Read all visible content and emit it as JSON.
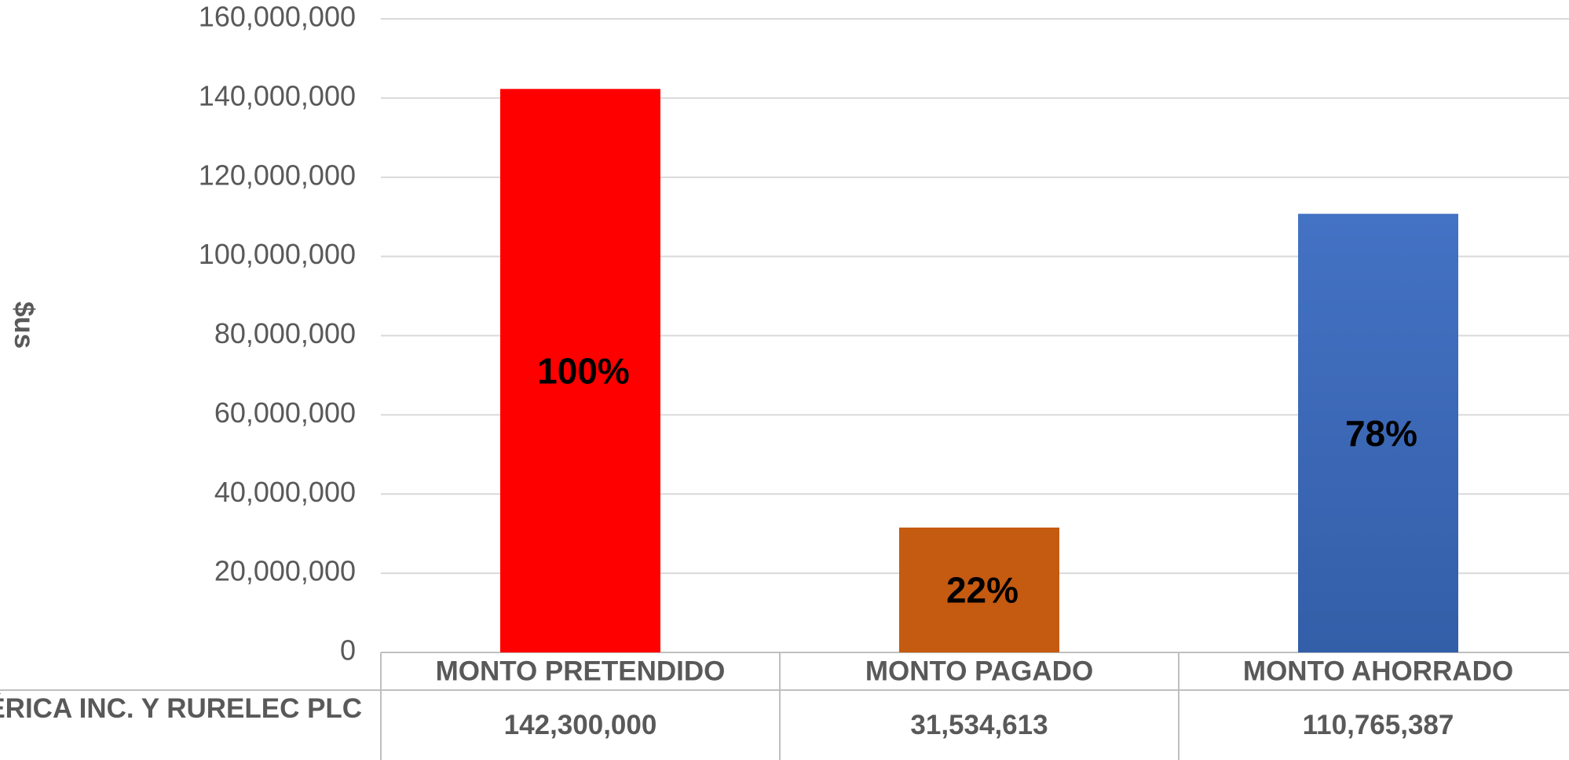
{
  "chart_data": {
    "type": "bar",
    "y_axis_label": "$us",
    "categories": [
      "MONTO PRETENDIDO",
      "MONTO PAGADO",
      "MONTO AHORRADO"
    ],
    "series": [
      {
        "name": "AMÉRICA INC. Y RURELEC PLC",
        "values": [
          142300000,
          31534613,
          110765387
        ],
        "value_labels": [
          "142,300,000",
          "31,534,613",
          "110,765,387"
        ],
        "colors": [
          "#ff0000",
          "#c55a11",
          "#4472c4"
        ]
      }
    ],
    "percent_labels": [
      "100%",
      "22%",
      "78%"
    ],
    "ylim": [
      0,
      160000000
    ],
    "yticks": [
      0,
      {
        "value": 20000000,
        "label": "20,000,000"
      },
      {
        "value": 40000000,
        "label": "40,000,000"
      },
      {
        "value": 60000000,
        "label": "60,000,000"
      },
      {
        "value": 80000000,
        "label": "80,000,000"
      },
      {
        "value": 100000000,
        "label": "100,000,000"
      },
      {
        "value": 120000000,
        "label": "120,000,000"
      },
      {
        "value": 140000000,
        "label": "140,000,000"
      },
      {
        "value": 160000000,
        "label": "160,000,000"
      }
    ],
    "grid": true
  }
}
